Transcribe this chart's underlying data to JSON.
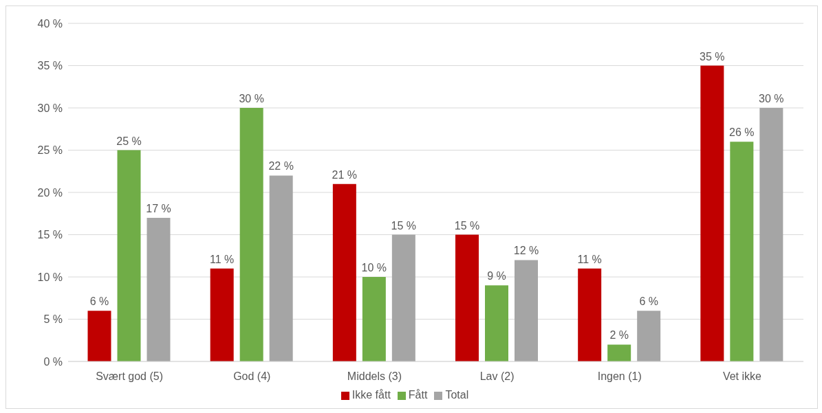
{
  "chart_data": {
    "type": "bar",
    "categories": [
      "Svært god (5)",
      "God (4)",
      "Middels (3)",
      "Lav (2)",
      "Ingen (1)",
      "Vet ikke"
    ],
    "series": [
      {
        "name": "Ikke fått",
        "color": "#c00000",
        "values": [
          6,
          11,
          21,
          15,
          11,
          35
        ],
        "value_labels": [
          "6 %",
          "11 %",
          "21 %",
          "15 %",
          "11 %",
          "35 %"
        ]
      },
      {
        "name": "Fått",
        "color": "#70ad47",
        "values": [
          25,
          30,
          10,
          9,
          2,
          26
        ],
        "value_labels": [
          "25 %",
          "30 %",
          "10 %",
          "9 %",
          "2 %",
          "26 %"
        ]
      },
      {
        "name": "Total",
        "color": "#a5a5a5",
        "values": [
          17,
          22,
          15,
          12,
          6,
          30
        ],
        "value_labels": [
          "17 %",
          "22 %",
          "15 %",
          "12 %",
          "6 %",
          "30 %"
        ]
      }
    ],
    "ylim": [
      0,
      40
    ],
    "yticks": [
      {
        "value": 0,
        "label": "0 %"
      },
      {
        "value": 5,
        "label": "5 %"
      },
      {
        "value": 10,
        "label": "10 %"
      },
      {
        "value": 15,
        "label": "15 %"
      },
      {
        "value": 20,
        "label": "20 %"
      },
      {
        "value": 25,
        "label": "25 %"
      },
      {
        "value": 30,
        "label": "30 %"
      },
      {
        "value": 35,
        "label": "35 %"
      },
      {
        "value": 40,
        "label": "40 %"
      }
    ],
    "grid": "y",
    "legend": "bottom"
  }
}
